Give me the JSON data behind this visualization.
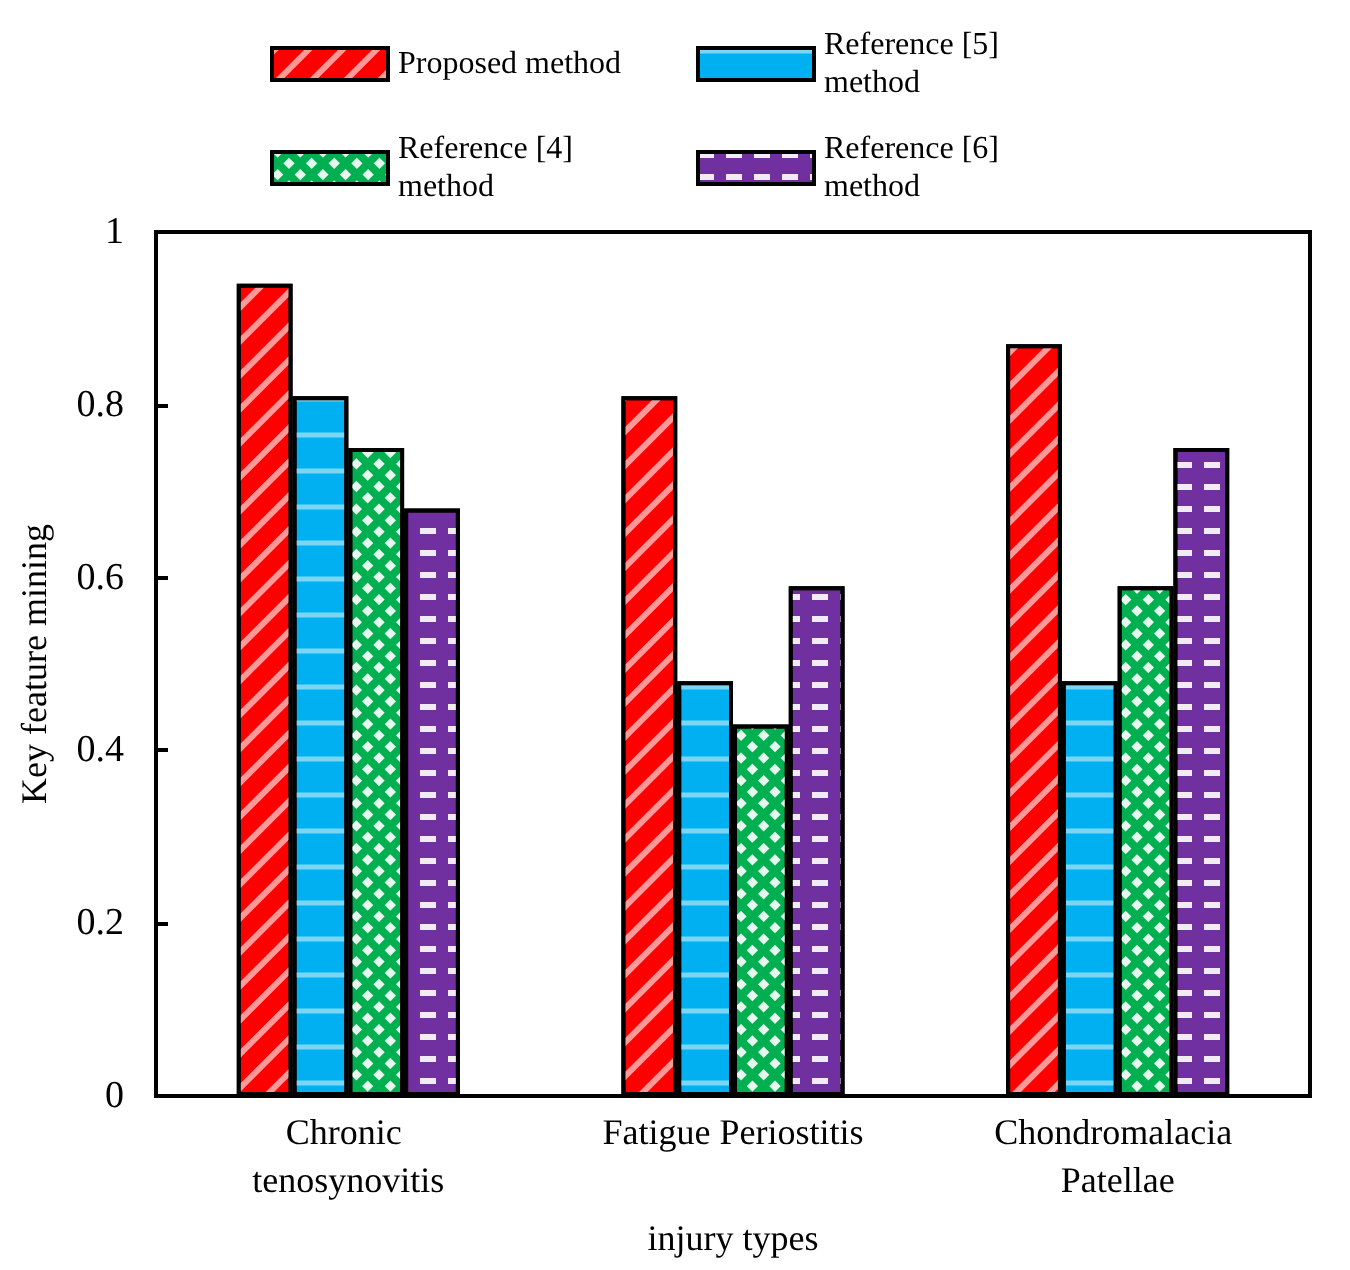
{
  "chart_data": {
    "type": "bar",
    "xlabel": "injury types",
    "ylabel": "Key feature mining",
    "categories": [
      "Chronic tenosynovitis",
      "Fatigue Periostitis",
      "Chondromalacia Patellae"
    ],
    "series": [
      {
        "name": "Proposed method",
        "color": "#ff0000",
        "values": [
          0.94,
          0.81,
          0.87
        ]
      },
      {
        "name": "Reference [5] method",
        "color": "#00b0f0",
        "values": [
          0.81,
          0.48,
          0.48
        ]
      },
      {
        "name": "Reference [4] method",
        "color": "#00b050",
        "values": [
          0.75,
          0.43,
          0.59
        ]
      },
      {
        "name": "Reference [6] method",
        "color": "#7030a0",
        "values": [
          0.68,
          0.59,
          0.75
        ]
      }
    ],
    "ylim": [
      0,
      1
    ],
    "yticks": [
      0,
      0.2,
      0.4,
      0.6,
      0.8,
      1
    ],
    "grid": false,
    "legend": "top"
  }
}
